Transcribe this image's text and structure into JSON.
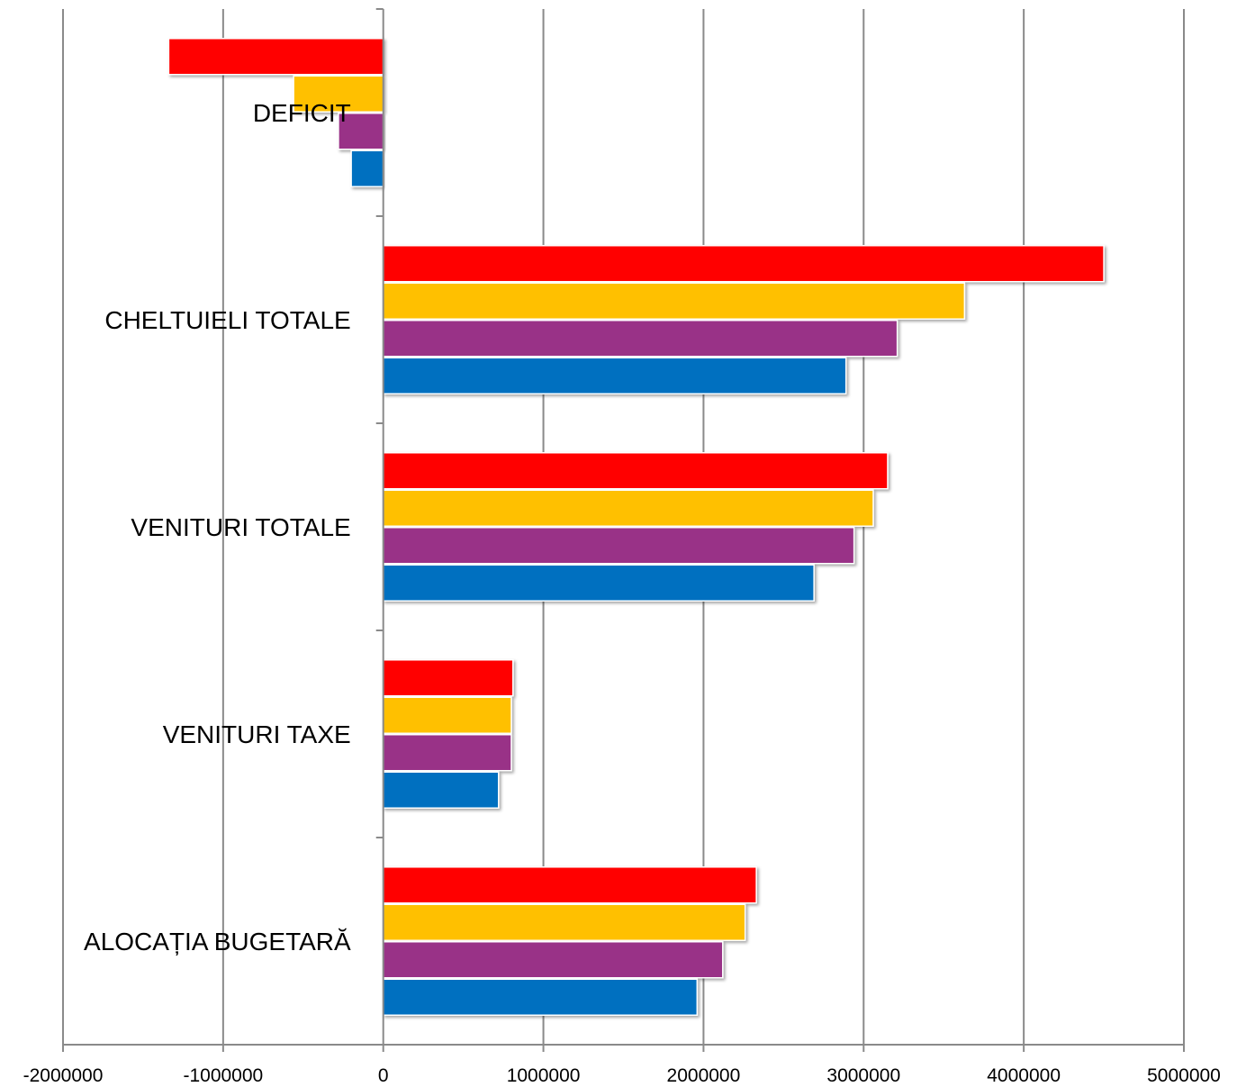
{
  "chart_data": {
    "type": "bar",
    "orientation": "horizontal",
    "categories": [
      "DEFICIT",
      "CHELTUIELI TOTALE",
      "VENITURI TOTALE",
      "VENITURI TAXE",
      "ALOCAȚIA BUGETARĂ"
    ],
    "series": [
      {
        "color": "#ff0000",
        "values": [
          -1340000,
          4500000,
          3150000,
          810000,
          2330000
        ]
      },
      {
        "color": "#ffc000",
        "values": [
          -560000,
          3630000,
          3060000,
          800000,
          2260000
        ]
      },
      {
        "color": "#993387",
        "values": [
          -280000,
          3210000,
          2940000,
          800000,
          2120000
        ]
      },
      {
        "color": "#0070c0",
        "values": [
          -200000,
          2890000,
          2690000,
          720000,
          1960000
        ]
      }
    ],
    "xlim": [
      -2000000,
      5000000
    ],
    "xticks": [
      "-2000000",
      "-1000000",
      "0",
      "1000000",
      "2000000",
      "3000000",
      "4000000",
      "5000000"
    ],
    "grid": true,
    "legend": "none",
    "title": "",
    "xlabel": "",
    "ylabel": ""
  }
}
